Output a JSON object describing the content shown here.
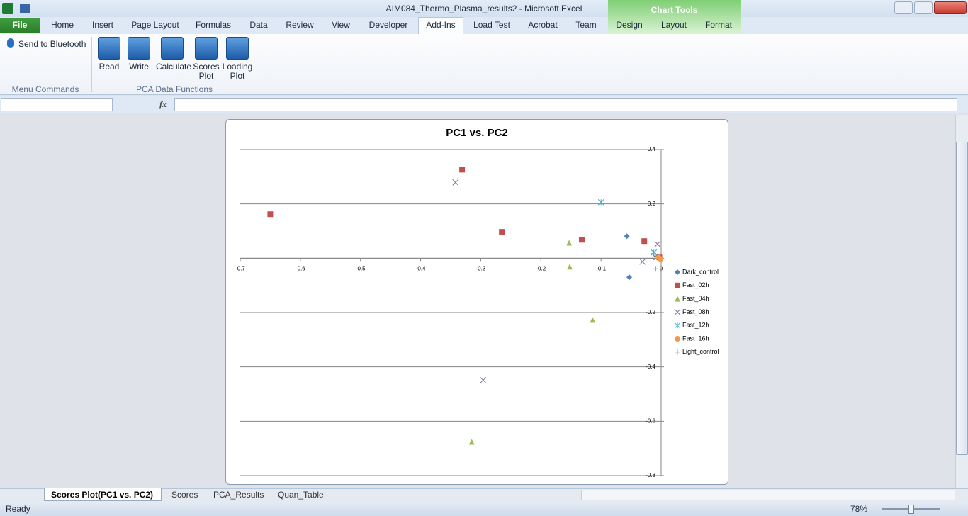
{
  "window": {
    "title": "AIM084_Thermo_Plasma_results2 - Microsoft Excel",
    "context_label": "Chart Tools"
  },
  "ribbon_tabs": [
    "File",
    "Home",
    "Insert",
    "Page Layout",
    "Formulas",
    "Data",
    "Review",
    "View",
    "Developer",
    "Add-Ins",
    "Load Test",
    "Acrobat",
    "Team",
    "Design",
    "Layout",
    "Format"
  ],
  "ribbon": {
    "groups": [
      {
        "label": "Menu Commands",
        "buttons": [
          "Send to Bluetooth"
        ]
      },
      {
        "label": "PCA Data Functions",
        "buttons": [
          "Read",
          "Write",
          "Calculate",
          "Scores Plot",
          "Loading Plot"
        ]
      }
    ]
  },
  "formula_bar": {
    "function_label": "fx"
  },
  "chart_data": {
    "type": "scatter",
    "title": "PC1 vs. PC2",
    "xlim": [
      -0.7,
      0
    ],
    "xticks": [
      -0.7,
      -0.6,
      -0.5,
      -0.4,
      -0.3,
      -0.2,
      -0.1,
      0
    ],
    "ylim": [
      -0.8,
      0.4
    ],
    "yticks": [
      0.4,
      0.2,
      0,
      -0.2,
      -0.4,
      -0.6,
      -0.8
    ],
    "grid": true,
    "legend": "right",
    "series": [
      {
        "name": "Dark_control",
        "color": "#4f81bd",
        "marker": "diamond",
        "x": [
          -0.057,
          -0.053,
          -0.005
        ],
        "values": [
          0.081,
          -0.07,
          0.008
        ]
      },
      {
        "name": "Fast_02h",
        "color": "#c0504d",
        "marker": "square",
        "x": [
          -0.331,
          -0.65,
          -0.265,
          -0.132,
          -0.028,
          -0.003
        ],
        "values": [
          0.326,
          0.162,
          0.097,
          0.068,
          0.063,
          0.003
        ]
      },
      {
        "name": "Fast_04h",
        "color": "#9bbb59",
        "marker": "triangle",
        "x": [
          -0.153,
          -0.152,
          -0.114,
          -0.315
        ],
        "values": [
          0.057,
          -0.031,
          -0.227,
          -0.676
        ]
      },
      {
        "name": "Fast_08h",
        "color": "#8064a2",
        "marker": "x",
        "x": [
          -0.342,
          -0.006,
          -0.031,
          -0.296
        ],
        "values": [
          0.279,
          0.052,
          -0.013,
          -0.449
        ]
      },
      {
        "name": "Fast_12h",
        "color": "#4bacc6",
        "marker": "star",
        "x": [
          -0.1,
          -0.012
        ],
        "values": [
          0.206,
          0.021
        ]
      },
      {
        "name": "Fast_16h",
        "color": "#f79646",
        "marker": "circle",
        "x": [
          -0.004,
          -0.001
        ],
        "values": [
          0.003,
          -0.003
        ]
      },
      {
        "name": "Light_control",
        "color": "#7f9fc8",
        "marker": "plus",
        "x": [
          -0.009,
          -0.013
        ],
        "values": [
          -0.039,
          0.018
        ]
      }
    ]
  },
  "sheet_tabs": [
    "Scores Plot(PC1 vs. PC2)",
    "Scores",
    "PCA_Results",
    "Quan_Table"
  ],
  "status_bar": {
    "mode": "Ready",
    "zoom": "78%"
  }
}
